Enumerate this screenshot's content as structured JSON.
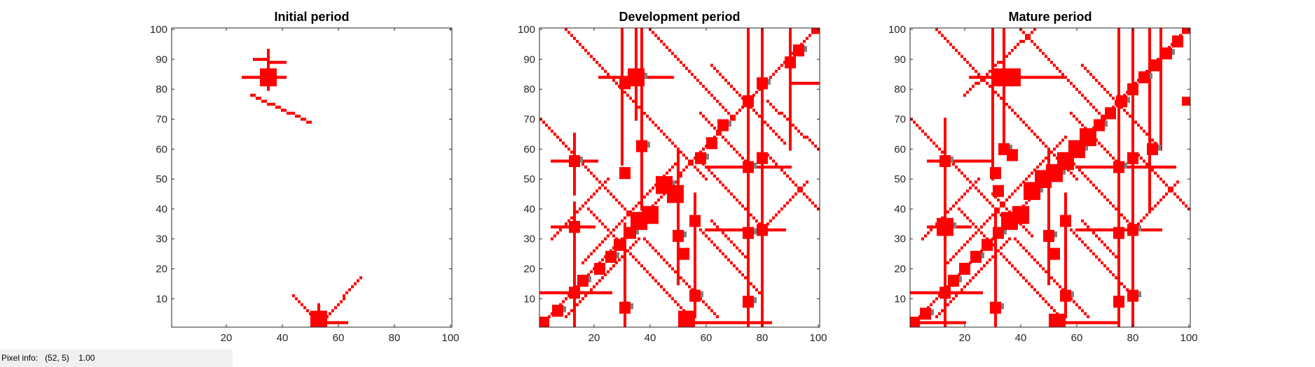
{
  "figure": {
    "background": "#ffffff",
    "mark_color": "#ff0000",
    "overlap_color": "#808080",
    "axis_color": "#262626"
  },
  "status_bar": {
    "label": "Pixel info:",
    "coords": "(52, 5)",
    "value": "1.00"
  },
  "chart_data": [
    {
      "type": "heatmap",
      "title": "Initial period",
      "xlim": [
        0.5,
        100.5
      ],
      "ylim": [
        0.5,
        100.5
      ],
      "xticks": [
        20,
        40,
        60,
        80,
        100
      ],
      "yticks": [
        10,
        20,
        30,
        40,
        50,
        60,
        70,
        80,
        90,
        100
      ],
      "grid": false,
      "clusters": [
        {
          "x": 35,
          "y": 84,
          "size": 6
        },
        {
          "x": 53,
          "y": 3,
          "size": 6
        }
      ],
      "lines": [
        {
          "x1": 26,
          "y1": 84,
          "x2": 41,
          "y2": 84
        },
        {
          "x1": 35,
          "y1": 80,
          "x2": 35,
          "y2": 93
        },
        {
          "x1": 29,
          "y1": 78,
          "x2": 50,
          "y2": 69
        },
        {
          "x1": 30,
          "y1": 90,
          "x2": 41,
          "y2": 89
        },
        {
          "x1": 53,
          "y1": 1,
          "x2": 53,
          "y2": 8
        },
        {
          "x1": 44,
          "y1": 11,
          "x2": 52,
          "y2": 3
        },
        {
          "x1": 55,
          "y1": 3,
          "x2": 68,
          "y2": 17
        },
        {
          "x1": 53,
          "y1": 2,
          "x2": 63,
          "y2": 2
        }
      ]
    },
    {
      "type": "heatmap",
      "title": "Development period",
      "xlim": [
        0.5,
        100.5
      ],
      "ylim": [
        0.5,
        100.5
      ],
      "xticks": [
        20,
        40,
        60,
        80,
        100
      ],
      "yticks": [
        10,
        20,
        30,
        40,
        50,
        60,
        70,
        80,
        90,
        100
      ],
      "grid": false,
      "clusters": [
        {
          "x": 35,
          "y": 84,
          "size": 6
        },
        {
          "x": 31,
          "y": 82,
          "size": 4
        },
        {
          "x": 13,
          "y": 56,
          "size": 4
        },
        {
          "x": 31,
          "y": 52,
          "size": 4
        },
        {
          "x": 37,
          "y": 61,
          "size": 4
        },
        {
          "x": 13,
          "y": 34,
          "size": 4
        },
        {
          "x": 36,
          "y": 36,
          "size": 6
        },
        {
          "x": 40,
          "y": 38,
          "size": 6
        },
        {
          "x": 45,
          "y": 48,
          "size": 6
        },
        {
          "x": 49,
          "y": 45,
          "size": 6
        },
        {
          "x": 33,
          "y": 32,
          "size": 4
        },
        {
          "x": 29,
          "y": 28,
          "size": 4
        },
        {
          "x": 26,
          "y": 24,
          "size": 4
        },
        {
          "x": 22,
          "y": 20,
          "size": 4
        },
        {
          "x": 16,
          "y": 16,
          "size": 4
        },
        {
          "x": 13,
          "y": 12,
          "size": 4
        },
        {
          "x": 7,
          "y": 6,
          "size": 4
        },
        {
          "x": 2,
          "y": 2,
          "size": 4
        },
        {
          "x": 31,
          "y": 7,
          "size": 4
        },
        {
          "x": 53,
          "y": 3,
          "size": 6
        },
        {
          "x": 56,
          "y": 11,
          "size": 4
        },
        {
          "x": 52,
          "y": 25,
          "size": 4
        },
        {
          "x": 50,
          "y": 31,
          "size": 4
        },
        {
          "x": 56,
          "y": 36,
          "size": 4
        },
        {
          "x": 58,
          "y": 57,
          "size": 4
        },
        {
          "x": 62,
          "y": 62,
          "size": 4
        },
        {
          "x": 66,
          "y": 68,
          "size": 4
        },
        {
          "x": 75,
          "y": 76,
          "size": 4
        },
        {
          "x": 80,
          "y": 82,
          "size": 4
        },
        {
          "x": 90,
          "y": 89,
          "size": 4
        },
        {
          "x": 93,
          "y": 93,
          "size": 4
        },
        {
          "x": 99,
          "y": 100,
          "size": 3
        },
        {
          "x": 75,
          "y": 54,
          "size": 4
        },
        {
          "x": 80,
          "y": 57,
          "size": 4
        },
        {
          "x": 75,
          "y": 32,
          "size": 4
        },
        {
          "x": 80,
          "y": 33,
          "size": 4
        },
        {
          "x": 75,
          "y": 9,
          "size": 4
        }
      ],
      "lines": [
        {
          "x1": 22,
          "y1": 84,
          "x2": 48,
          "y2": 84
        },
        {
          "x1": 35,
          "y1": 70,
          "x2": 35,
          "y2": 100
        },
        {
          "x1": 30,
          "y1": 55,
          "x2": 30,
          "y2": 100
        },
        {
          "x1": 13,
          "y1": 45,
          "x2": 13,
          "y2": 65
        },
        {
          "x1": 5,
          "y1": 56,
          "x2": 21,
          "y2": 56
        },
        {
          "x1": 37,
          "y1": 40,
          "x2": 37,
          "y2": 100
        },
        {
          "x1": 5,
          "y1": 34,
          "x2": 20,
          "y2": 34
        },
        {
          "x1": 13,
          "y1": 1,
          "x2": 13,
          "y2": 42
        },
        {
          "x1": 1,
          "y1": 12,
          "x2": 26,
          "y2": 12
        },
        {
          "x1": 31,
          "y1": 1,
          "x2": 31,
          "y2": 35
        },
        {
          "x1": 52,
          "y1": 2,
          "x2": 83,
          "y2": 2
        },
        {
          "x1": 50,
          "y1": 15,
          "x2": 50,
          "y2": 60
        },
        {
          "x1": 56,
          "y1": 4,
          "x2": 56,
          "y2": 45
        },
        {
          "x1": 75,
          "y1": 1,
          "x2": 75,
          "y2": 100
        },
        {
          "x1": 80,
          "y1": 1,
          "x2": 80,
          "y2": 100
        },
        {
          "x1": 60,
          "y1": 54,
          "x2": 90,
          "y2": 54
        },
        {
          "x1": 60,
          "y1": 33,
          "x2": 88,
          "y2": 33
        },
        {
          "x1": 90,
          "y1": 82,
          "x2": 100,
          "y2": 82
        },
        {
          "x1": 90,
          "y1": 60,
          "x2": 90,
          "y2": 100
        },
        {
          "x1": 2,
          "y1": 2,
          "x2": 99,
          "y2": 100
        },
        {
          "x1": 16,
          "y1": 22,
          "x2": 50,
          "y2": 56
        },
        {
          "x1": 10,
          "y1": 100,
          "x2": 60,
          "y2": 50
        },
        {
          "x1": 40,
          "y1": 100,
          "x2": 70,
          "y2": 70
        },
        {
          "x1": 1,
          "y1": 70,
          "x2": 35,
          "y2": 36
        },
        {
          "x1": 18,
          "y1": 40,
          "x2": 56,
          "y2": 2
        },
        {
          "x1": 58,
          "y1": 33,
          "x2": 80,
          "y2": 11
        },
        {
          "x1": 57,
          "y1": 57,
          "x2": 80,
          "y2": 34
        },
        {
          "x1": 82,
          "y1": 58,
          "x2": 100,
          "y2": 40
        },
        {
          "x1": 82,
          "y1": 76,
          "x2": 100,
          "y2": 60
        },
        {
          "x1": 62,
          "y1": 36,
          "x2": 75,
          "y2": 23
        },
        {
          "x1": 38,
          "y1": 30,
          "x2": 64,
          "y2": 4
        },
        {
          "x1": 36,
          "y1": 30,
          "x2": 10,
          "y2": 4
        },
        {
          "x1": 74,
          "y1": 56,
          "x2": 58,
          "y2": 72
        },
        {
          "x1": 82,
          "y1": 35,
          "x2": 96,
          "y2": 49
        },
        {
          "x1": 62,
          "y1": 88,
          "x2": 88,
          "y2": 62
        },
        {
          "x1": 5,
          "y1": 30,
          "x2": 25,
          "y2": 50
        }
      ]
    },
    {
      "type": "heatmap",
      "title": "Mature period",
      "xlim": [
        0.5,
        100.5
      ],
      "ylim": [
        0.5,
        100.5
      ],
      "xticks": [
        20,
        40,
        60,
        80,
        100
      ],
      "yticks": [
        10,
        20,
        30,
        40,
        50,
        60,
        70,
        80,
        90,
        100
      ],
      "grid": false,
      "clusters": [
        {
          "x": 33,
          "y": 84,
          "size": 6
        },
        {
          "x": 37,
          "y": 84,
          "size": 6
        },
        {
          "x": 13,
          "y": 56,
          "size": 4
        },
        {
          "x": 31,
          "y": 52,
          "size": 4
        },
        {
          "x": 34,
          "y": 60,
          "size": 4
        },
        {
          "x": 37,
          "y": 58,
          "size": 4
        },
        {
          "x": 13,
          "y": 34,
          "size": 6
        },
        {
          "x": 32,
          "y": 46,
          "size": 4
        },
        {
          "x": 36,
          "y": 36,
          "size": 6
        },
        {
          "x": 40,
          "y": 38,
          "size": 6
        },
        {
          "x": 44,
          "y": 46,
          "size": 6
        },
        {
          "x": 48,
          "y": 50,
          "size": 6
        },
        {
          "x": 52,
          "y": 52,
          "size": 6
        },
        {
          "x": 56,
          "y": 56,
          "size": 6
        },
        {
          "x": 60,
          "y": 60,
          "size": 6
        },
        {
          "x": 64,
          "y": 64,
          "size": 6
        },
        {
          "x": 68,
          "y": 68,
          "size": 4
        },
        {
          "x": 72,
          "y": 72,
          "size": 4
        },
        {
          "x": 76,
          "y": 76,
          "size": 4
        },
        {
          "x": 80,
          "y": 80,
          "size": 4
        },
        {
          "x": 84,
          "y": 84,
          "size": 4
        },
        {
          "x": 88,
          "y": 88,
          "size": 4
        },
        {
          "x": 92,
          "y": 92,
          "size": 4
        },
        {
          "x": 96,
          "y": 96,
          "size": 4
        },
        {
          "x": 99,
          "y": 100,
          "size": 3
        },
        {
          "x": 99,
          "y": 76,
          "size": 3
        },
        {
          "x": 32,
          "y": 32,
          "size": 4
        },
        {
          "x": 28,
          "y": 28,
          "size": 4
        },
        {
          "x": 24,
          "y": 24,
          "size": 4
        },
        {
          "x": 20,
          "y": 20,
          "size": 4
        },
        {
          "x": 16,
          "y": 16,
          "size": 4
        },
        {
          "x": 13,
          "y": 12,
          "size": 4
        },
        {
          "x": 6,
          "y": 5,
          "size": 4
        },
        {
          "x": 2,
          "y": 2,
          "size": 4
        },
        {
          "x": 31,
          "y": 7,
          "size": 4
        },
        {
          "x": 53,
          "y": 2,
          "size": 6
        },
        {
          "x": 56,
          "y": 11,
          "size": 4
        },
        {
          "x": 52,
          "y": 25,
          "size": 4
        },
        {
          "x": 50,
          "y": 31,
          "size": 4
        },
        {
          "x": 56,
          "y": 36,
          "size": 4
        },
        {
          "x": 75,
          "y": 54,
          "size": 4
        },
        {
          "x": 80,
          "y": 57,
          "size": 4
        },
        {
          "x": 87,
          "y": 60,
          "size": 4
        },
        {
          "x": 75,
          "y": 32,
          "size": 4
        },
        {
          "x": 80,
          "y": 33,
          "size": 4
        },
        {
          "x": 75,
          "y": 9,
          "size": 4
        },
        {
          "x": 80,
          "y": 11,
          "size": 4
        }
      ],
      "lines": [
        {
          "x1": 22,
          "y1": 84,
          "x2": 55,
          "y2": 84
        },
        {
          "x1": 34,
          "y1": 60,
          "x2": 34,
          "y2": 100
        },
        {
          "x1": 30,
          "y1": 50,
          "x2": 30,
          "y2": 100
        },
        {
          "x1": 13,
          "y1": 40,
          "x2": 13,
          "y2": 70
        },
        {
          "x1": 7,
          "y1": 56,
          "x2": 30,
          "y2": 56
        },
        {
          "x1": 7,
          "y1": 34,
          "x2": 22,
          "y2": 34
        },
        {
          "x1": 13,
          "y1": 1,
          "x2": 13,
          "y2": 42
        },
        {
          "x1": 1,
          "y1": 12,
          "x2": 26,
          "y2": 12
        },
        {
          "x1": 31,
          "y1": 1,
          "x2": 31,
          "y2": 40
        },
        {
          "x1": 52,
          "y1": 2,
          "x2": 74,
          "y2": 2
        },
        {
          "x1": 50,
          "y1": 15,
          "x2": 50,
          "y2": 60
        },
        {
          "x1": 56,
          "y1": 4,
          "x2": 56,
          "y2": 45
        },
        {
          "x1": 75,
          "y1": 1,
          "x2": 75,
          "y2": 100
        },
        {
          "x1": 80,
          "y1": 1,
          "x2": 80,
          "y2": 100
        },
        {
          "x1": 60,
          "y1": 54,
          "x2": 95,
          "y2": 54
        },
        {
          "x1": 60,
          "y1": 33,
          "x2": 90,
          "y2": 33
        },
        {
          "x1": 90,
          "y1": 60,
          "x2": 90,
          "y2": 100
        },
        {
          "x1": 86,
          "y1": 40,
          "x2": 86,
          "y2": 100
        },
        {
          "x1": 2,
          "y1": 2,
          "x2": 99,
          "y2": 100
        },
        {
          "x1": 1,
          "y1": 2,
          "x2": 20,
          "y2": 2
        },
        {
          "x1": 10,
          "y1": 100,
          "x2": 60,
          "y2": 50
        },
        {
          "x1": 40,
          "y1": 100,
          "x2": 70,
          "y2": 70
        },
        {
          "x1": 1,
          "y1": 70,
          "x2": 35,
          "y2": 36
        },
        {
          "x1": 18,
          "y1": 40,
          "x2": 56,
          "y2": 2
        },
        {
          "x1": 58,
          "y1": 33,
          "x2": 80,
          "y2": 11
        },
        {
          "x1": 57,
          "y1": 57,
          "x2": 80,
          "y2": 34
        },
        {
          "x1": 82,
          "y1": 58,
          "x2": 100,
          "y2": 40
        },
        {
          "x1": 62,
          "y1": 36,
          "x2": 75,
          "y2": 23
        },
        {
          "x1": 38,
          "y1": 30,
          "x2": 64,
          "y2": 4
        },
        {
          "x1": 36,
          "y1": 30,
          "x2": 10,
          "y2": 4
        },
        {
          "x1": 74,
          "y1": 56,
          "x2": 58,
          "y2": 72
        },
        {
          "x1": 82,
          "y1": 35,
          "x2": 96,
          "y2": 49
        },
        {
          "x1": 62,
          "y1": 88,
          "x2": 88,
          "y2": 62
        },
        {
          "x1": 5,
          "y1": 30,
          "x2": 25,
          "y2": 50
        },
        {
          "x1": 14,
          "y1": 22,
          "x2": 56,
          "y2": 64
        },
        {
          "x1": 20,
          "y1": 78,
          "x2": 45,
          "y2": 100
        },
        {
          "x1": 30,
          "y1": 45,
          "x2": 44,
          "y2": 31
        }
      ]
    }
  ]
}
